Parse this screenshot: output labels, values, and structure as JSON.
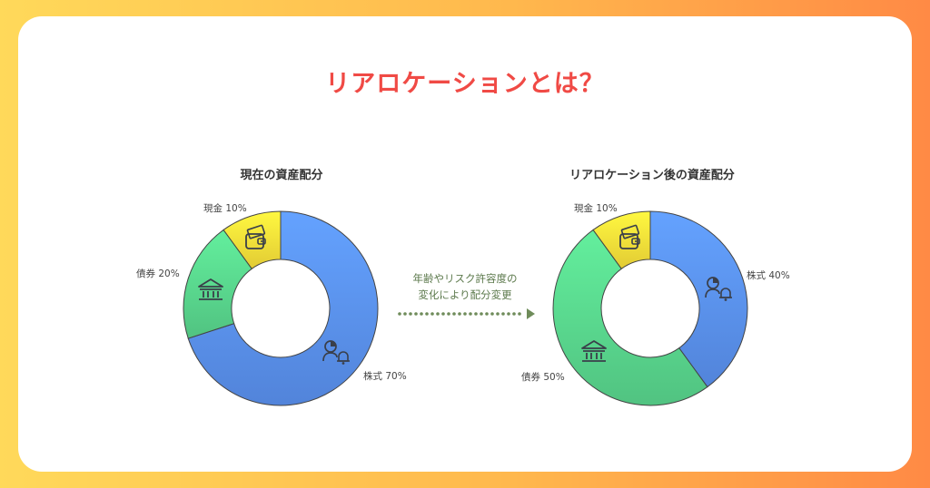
{
  "title": "リアロケーションとは？",
  "note": {
    "line1": "年齢やリスク許容度の",
    "line2": "変化により配分変更"
  },
  "colors": {
    "stocks": "#5b93f2",
    "bonds": "#5ad98f",
    "cash": "#fbe13a",
    "arrow": "#6f8c5a"
  },
  "chart_data": [
    {
      "type": "pie",
      "title": "現在の資産配分",
      "slices": [
        {
          "label": "株式",
          "value": 70,
          "display": "株式 70%",
          "icon": "stock-chart-person-icon",
          "color": "#5b93f2"
        },
        {
          "label": "債券",
          "value": 20,
          "display": "債券 20%",
          "icon": "bank-icon",
          "color": "#5ad98f"
        },
        {
          "label": "現金",
          "value": 10,
          "display": "現金 10%",
          "icon": "cash-wallet-icon",
          "color": "#fbe13a"
        }
      ]
    },
    {
      "type": "pie",
      "title": "リアロケーション後の資産配分",
      "slices": [
        {
          "label": "株式",
          "value": 40,
          "display": "株式 40%",
          "icon": "stock-chart-person-icon",
          "color": "#5b93f2"
        },
        {
          "label": "債券",
          "value": 50,
          "display": "債券 50%",
          "icon": "bank-icon",
          "color": "#5ad98f"
        },
        {
          "label": "現金",
          "value": 10,
          "display": "現金 10%",
          "icon": "cash-wallet-icon",
          "color": "#fbe13a"
        }
      ]
    }
  ]
}
